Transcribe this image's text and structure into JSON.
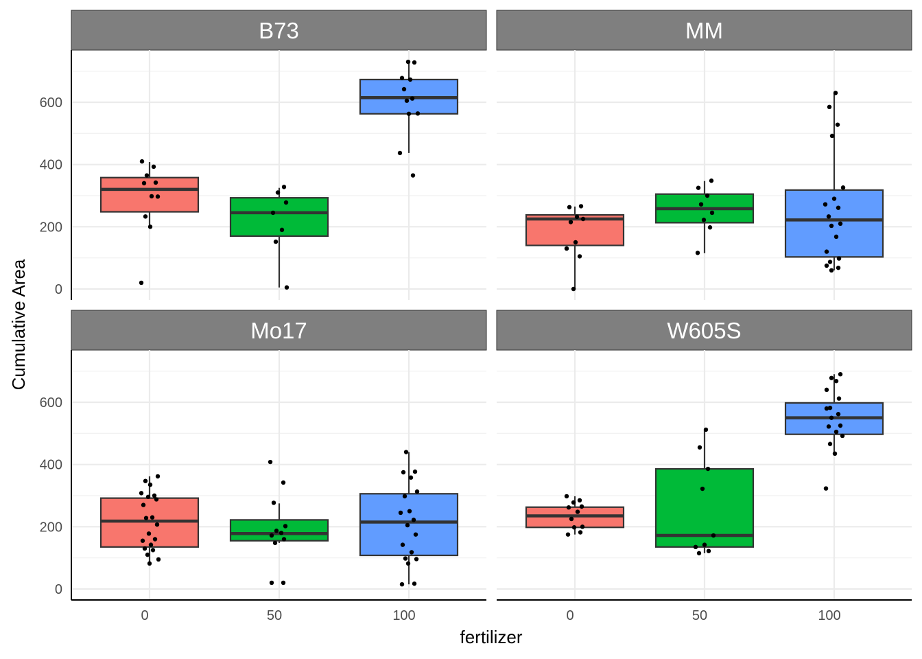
{
  "chart_data": {
    "type": "box",
    "layout": "facet-grid 2x2",
    "xlabel": "fertilizer",
    "ylabel": "Cumulative Area",
    "x_categories": [
      "0",
      "50",
      "100"
    ],
    "y_ticks": [
      0,
      200,
      400,
      600
    ],
    "ylim": [
      -10,
      755
    ],
    "grid": true,
    "legend": "none",
    "colors": {
      "0": "#F8766D",
      "50": "#00BA38",
      "100": "#619CFF"
    },
    "panels": [
      {
        "label": "B73",
        "boxes": [
          {
            "x": "0",
            "q1": 248,
            "median": 320,
            "q3": 358,
            "whisker_low": 200,
            "whisker_high": 408
          },
          {
            "x": "50",
            "q1": 170,
            "median": 245,
            "q3": 293,
            "whisker_low": 5,
            "whisker_high": 325
          },
          {
            "x": "100",
            "q1": 563,
            "median": 615,
            "q3": 673,
            "whisker_low": 437,
            "whisker_high": 730
          }
        ],
        "points": [
          [
            0,
            410
          ],
          [
            0,
            393
          ],
          [
            0,
            365
          ],
          [
            0,
            342
          ],
          [
            0,
            340
          ],
          [
            0,
            298
          ],
          [
            0,
            297
          ],
          [
            0,
            233
          ],
          [
            0,
            200
          ],
          [
            0,
            20
          ],
          [
            50,
            328
          ],
          [
            50,
            310
          ],
          [
            50,
            278
          ],
          [
            50,
            245
          ],
          [
            50,
            190
          ],
          [
            50,
            152
          ],
          [
            50,
            5
          ],
          [
            100,
            730
          ],
          [
            100,
            728
          ],
          [
            100,
            678
          ],
          [
            100,
            673
          ],
          [
            100,
            642
          ],
          [
            100,
            612
          ],
          [
            100,
            605
          ],
          [
            100,
            564
          ],
          [
            100,
            563
          ],
          [
            100,
            437
          ],
          [
            100,
            365
          ]
        ]
      },
      {
        "label": "MM",
        "boxes": [
          {
            "x": "0",
            "q1": 140,
            "median": 225,
            "q3": 238,
            "whisker_low": 0,
            "whisker_high": 265
          },
          {
            "x": "50",
            "q1": 213,
            "median": 258,
            "q3": 305,
            "whisker_low": 115,
            "whisker_high": 347
          },
          {
            "x": "100",
            "q1": 103,
            "median": 222,
            "q3": 318,
            "whisker_low": 60,
            "whisker_high": 630
          }
        ],
        "points": [
          [
            0,
            266
          ],
          [
            0,
            263
          ],
          [
            0,
            232
          ],
          [
            0,
            225
          ],
          [
            0,
            215
          ],
          [
            0,
            150
          ],
          [
            0,
            130
          ],
          [
            0,
            105
          ],
          [
            0,
            0
          ],
          [
            50,
            348
          ],
          [
            50,
            325
          ],
          [
            50,
            300
          ],
          [
            50,
            272
          ],
          [
            50,
            245
          ],
          [
            50,
            222
          ],
          [
            50,
            198
          ],
          [
            50,
            116
          ],
          [
            100,
            630
          ],
          [
            100,
            585
          ],
          [
            100,
            528
          ],
          [
            100,
            492
          ],
          [
            100,
            326
          ],
          [
            100,
            290
          ],
          [
            100,
            272
          ],
          [
            100,
            261
          ],
          [
            100,
            233
          ],
          [
            100,
            210
          ],
          [
            100,
            203
          ],
          [
            100,
            168
          ],
          [
            100,
            120
          ],
          [
            100,
            98
          ],
          [
            100,
            87
          ],
          [
            100,
            75
          ],
          [
            100,
            68
          ],
          [
            100,
            60
          ]
        ]
      },
      {
        "label": "Mo17",
        "boxes": [
          {
            "x": "0",
            "q1": 135,
            "median": 218,
            "q3": 292,
            "whisker_low": 82,
            "whisker_high": 362
          },
          {
            "x": "50",
            "q1": 155,
            "median": 178,
            "q3": 222,
            "whisker_low": 148,
            "whisker_high": 275
          },
          {
            "x": "100",
            "q1": 108,
            "median": 215,
            "q3": 306,
            "whisker_low": 15,
            "whisker_high": 440
          }
        ],
        "points": [
          [
            0,
            362
          ],
          [
            0,
            347
          ],
          [
            0,
            335
          ],
          [
            0,
            308
          ],
          [
            0,
            300
          ],
          [
            0,
            296
          ],
          [
            0,
            288
          ],
          [
            0,
            270
          ],
          [
            0,
            230
          ],
          [
            0,
            228
          ],
          [
            0,
            207
          ],
          [
            0,
            178
          ],
          [
            0,
            160
          ],
          [
            0,
            155
          ],
          [
            0,
            142
          ],
          [
            0,
            130
          ],
          [
            0,
            125
          ],
          [
            0,
            110
          ],
          [
            0,
            95
          ],
          [
            0,
            82
          ],
          [
            50,
            408
          ],
          [
            50,
            342
          ],
          [
            50,
            277
          ],
          [
            50,
            202
          ],
          [
            50,
            187
          ],
          [
            50,
            180
          ],
          [
            50,
            172
          ],
          [
            50,
            160
          ],
          [
            50,
            148
          ],
          [
            50,
            20
          ],
          [
            50,
            20
          ],
          [
            100,
            440
          ],
          [
            100,
            377
          ],
          [
            100,
            375
          ],
          [
            100,
            358
          ],
          [
            100,
            313
          ],
          [
            100,
            298
          ],
          [
            100,
            250
          ],
          [
            100,
            245
          ],
          [
            100,
            222
          ],
          [
            100,
            205
          ],
          [
            100,
            175
          ],
          [
            100,
            142
          ],
          [
            100,
            118
          ],
          [
            100,
            98
          ],
          [
            100,
            96
          ],
          [
            100,
            82
          ],
          [
            100,
            17
          ],
          [
            100,
            15
          ]
        ]
      },
      {
        "label": "W605S",
        "boxes": [
          {
            "x": "0",
            "q1": 198,
            "median": 235,
            "q3": 263,
            "whisker_low": 175,
            "whisker_high": 298
          },
          {
            "x": "50",
            "q1": 135,
            "median": 172,
            "q3": 386,
            "whisker_low": 115,
            "whisker_high": 512
          },
          {
            "x": "100",
            "q1": 497,
            "median": 550,
            "q3": 598,
            "whisker_low": 435,
            "whisker_high": 690
          }
        ],
        "points": [
          [
            0,
            298
          ],
          [
            0,
            285
          ],
          [
            0,
            278
          ],
          [
            0,
            265
          ],
          [
            0,
            262
          ],
          [
            0,
            248
          ],
          [
            0,
            225
          ],
          [
            0,
            200
          ],
          [
            0,
            198
          ],
          [
            0,
            182
          ],
          [
            0,
            175
          ],
          [
            50,
            512
          ],
          [
            50,
            455
          ],
          [
            50,
            386
          ],
          [
            50,
            322
          ],
          [
            50,
            172
          ],
          [
            50,
            142
          ],
          [
            50,
            135
          ],
          [
            50,
            122
          ],
          [
            50,
            115
          ],
          [
            100,
            690
          ],
          [
            100,
            678
          ],
          [
            100,
            668
          ],
          [
            100,
            640
          ],
          [
            100,
            612
          ],
          [
            100,
            582
          ],
          [
            100,
            580
          ],
          [
            100,
            562
          ],
          [
            100,
            550
          ],
          [
            100,
            525
          ],
          [
            100,
            522
          ],
          [
            100,
            505
          ],
          [
            100,
            492
          ],
          [
            100,
            466
          ],
          [
            100,
            435
          ],
          [
            100,
            323
          ]
        ]
      }
    ]
  }
}
